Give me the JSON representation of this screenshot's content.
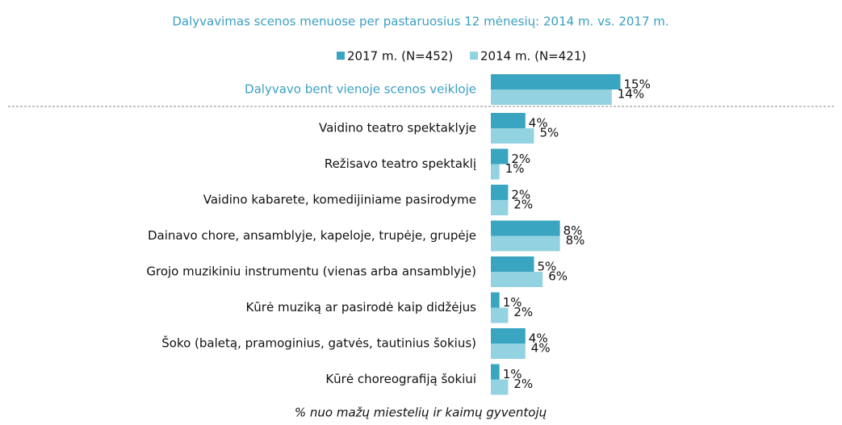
{
  "chart_data": {
    "type": "hbar",
    "title": "Dalyvavimas scenos menuose per pastaruosius 12 mėnesių: 2014 m. vs. 2017 m.",
    "categories": [
      "Dalyvavo bent vienoje scenos veikloje",
      "Vaidino teatro spektaklyje",
      "Režisavo teatro spektaklį",
      "Vaidino kabarete, komedijiniame pasirodyme",
      "Dainavo chore, ansamblyje, kapeloje, trupėje, grupėje",
      "Grojo muzikiniu instrumentu (vienas arba ansamblyje)",
      "Kūrė muziką ar pasirodė kaip didžėjus",
      "Šoko (baletą, pramoginius, gatvės, tautinius šokius)",
      "Kūrė choreografiją šokiui"
    ],
    "series": [
      {
        "name": "2017 m. (N=452)",
        "color": "#3aa5c0",
        "values": [
          15,
          4,
          2,
          2,
          8,
          5,
          1,
          4,
          1
        ],
        "value_labels": [
          "15%",
          "4%",
          "2%",
          "2%",
          "8%",
          "5%",
          "1%",
          "4%",
          "1%"
        ]
      },
      {
        "name": "2014 m. (N=421)",
        "color": "#93d2e0",
        "values": [
          14,
          5,
          1,
          2,
          8,
          6,
          2,
          4,
          2
        ],
        "value_labels": [
          "14%",
          "5%",
          "1%",
          "2%",
          "8%",
          "6%",
          "2%",
          "4%",
          "2%"
        ]
      }
    ],
    "note": "% nuo mažų miestelių ir kaimų gyventojų"
  }
}
